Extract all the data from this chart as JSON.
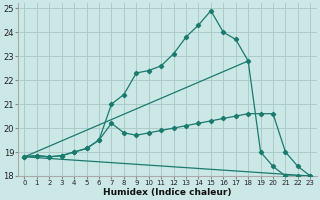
{
  "xlabel": "Humidex (Indice chaleur)",
  "xlim": [
    -0.5,
    23.5
  ],
  "ylim": [
    18,
    25.2
  ],
  "yticks": [
    18,
    19,
    20,
    21,
    22,
    23,
    24,
    25
  ],
  "xticks": [
    0,
    1,
    2,
    3,
    4,
    5,
    6,
    7,
    8,
    9,
    10,
    11,
    12,
    13,
    14,
    15,
    16,
    17,
    18,
    19,
    20,
    21,
    22,
    23
  ],
  "bg_color": "#cce8e6",
  "grid_color": "#aaccca",
  "line_color": "#1a7a6e",
  "line1_x": [
    0,
    1,
    2,
    3,
    4,
    5,
    6,
    7,
    8,
    9,
    10,
    11,
    12,
    13,
    14,
    15,
    16,
    17,
    18,
    19,
    20,
    21,
    22,
    23
  ],
  "line1_y": [
    18.8,
    18.85,
    18.8,
    18.85,
    19.0,
    19.15,
    19.5,
    21.0,
    21.4,
    22.3,
    22.4,
    22.6,
    23.1,
    23.8,
    24.3,
    24.9,
    24.0,
    23.7,
    22.8,
    19.0,
    18.4,
    18.0,
    18.0,
    18.0
  ],
  "line2_x": [
    0,
    1,
    2,
    3,
    4,
    5,
    6,
    7,
    8,
    9,
    10,
    11,
    12,
    13,
    14,
    15,
    16,
    17,
    18,
    19,
    20,
    21,
    22,
    23
  ],
  "line2_y": [
    18.8,
    18.85,
    18.8,
    18.85,
    19.0,
    19.15,
    19.5,
    20.2,
    19.8,
    19.7,
    19.8,
    19.9,
    20.0,
    20.1,
    20.2,
    20.3,
    20.4,
    20.5,
    20.6,
    20.6,
    20.6,
    19.0,
    18.4,
    18.0
  ],
  "line3_x": [
    0,
    23
  ],
  "line3_y": [
    18.8,
    18.0
  ],
  "line4_x": [
    0,
    18
  ],
  "line4_y": [
    18.8,
    22.8
  ]
}
